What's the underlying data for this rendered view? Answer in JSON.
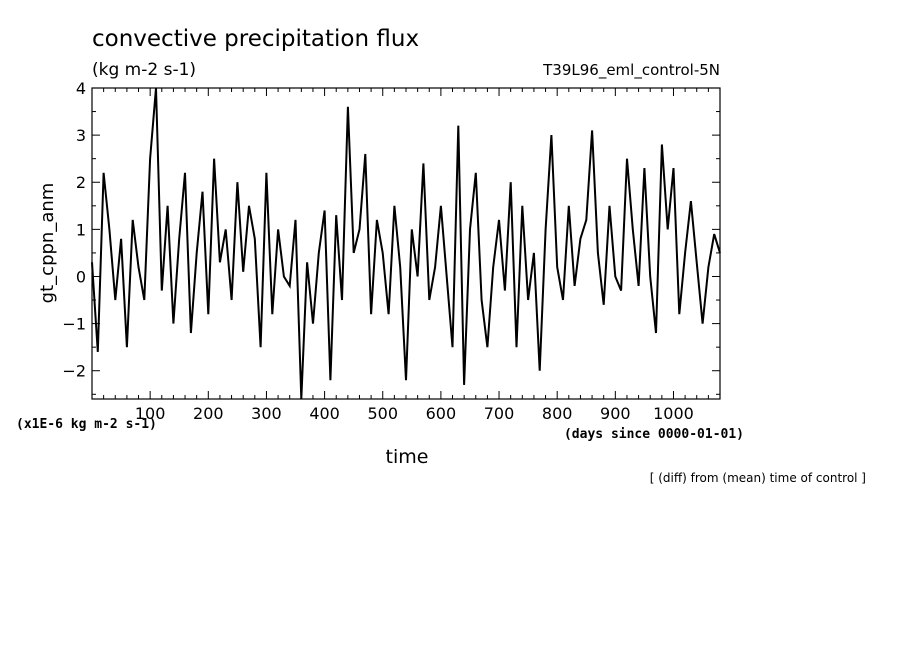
{
  "chart_data": {
    "type": "line",
    "title": "convective precipitation flux",
    "subtitle_left": "(kg m-2 s-1)",
    "subtitle_right": "T39L96_eml_control-5N",
    "ylabel": "gt_cppn_anm",
    "xlabel": "time",
    "x_unit_note": "(days since 0000-01-01)",
    "y_unit_note": "(x1E-6 kg m-2 s-1)",
    "footnote": "[ (diff) from (mean) time of control ]",
    "xlim": [
      0,
      1080
    ],
    "ylim": [
      -2.6,
      4.0
    ],
    "x_ticks_major": [
      100,
      200,
      300,
      400,
      500,
      600,
      700,
      800,
      900,
      1000
    ],
    "y_ticks_major": [
      -2,
      -1,
      0,
      1,
      2,
      3,
      4
    ],
    "y_tick_labels": [
      "−2",
      "−1",
      "0",
      "1",
      "2",
      "3",
      "4"
    ],
    "grid": false,
    "series": [
      {
        "x": [
          0,
          10,
          20,
          30,
          40,
          50,
          60,
          70,
          80,
          90,
          100,
          110,
          120,
          130,
          140,
          150,
          160,
          170,
          180,
          190,
          200,
          210,
          220,
          230,
          240,
          250,
          260,
          270,
          280,
          290,
          300,
          310,
          320,
          330,
          340,
          350,
          360,
          370,
          380,
          390,
          400,
          410,
          420,
          430,
          440,
          450,
          460,
          470,
          480,
          490,
          500,
          510,
          520,
          530,
          540,
          550,
          560,
          570,
          580,
          590,
          600,
          610,
          620,
          630,
          640,
          650,
          660,
          670,
          680,
          690,
          700,
          710,
          720,
          730,
          740,
          750,
          760,
          770,
          780,
          790,
          800,
          810,
          820,
          830,
          840,
          850,
          860,
          870,
          880,
          890,
          900,
          910,
          920,
          930,
          940,
          950,
          960,
          970,
          980,
          990,
          1000,
          1010,
          1020,
          1030,
          1040,
          1050,
          1060,
          1070,
          1080
        ],
        "y": [
          0.3,
          -1.6,
          2.2,
          1.0,
          -0.5,
          0.8,
          -1.5,
          1.2,
          0.2,
          -0.5,
          2.5,
          4.0,
          -0.3,
          1.5,
          -1.0,
          0.8,
          2.2,
          -1.2,
          0.5,
          1.8,
          -0.8,
          2.5,
          0.3,
          1.0,
          -0.5,
          2.0,
          0.1,
          1.5,
          0.8,
          -1.5,
          2.2,
          -0.8,
          1.0,
          0.0,
          -0.2,
          1.2,
          -2.6,
          0.3,
          -1.0,
          0.5,
          1.4,
          -2.2,
          1.3,
          -0.5,
          3.6,
          0.5,
          1.0,
          2.6,
          -0.8,
          1.2,
          0.5,
          -0.8,
          1.5,
          0.2,
          -2.2,
          1.0,
          0.0,
          2.4,
          -0.5,
          0.2,
          1.5,
          0.0,
          -1.5,
          3.2,
          -2.3,
          1.0,
          2.2,
          -0.5,
          -1.5,
          0.2,
          1.2,
          -0.3,
          2.0,
          -1.5,
          1.5,
          -0.5,
          0.5,
          -2.0,
          1.0,
          3.0,
          0.2,
          -0.5,
          1.5,
          -0.2,
          0.8,
          1.2,
          3.1,
          0.5,
          -0.6,
          1.5,
          0.0,
          -0.3,
          2.5,
          1.0,
          -0.2,
          2.3,
          0.0,
          -1.2,
          2.8,
          1.0,
          2.3,
          -0.8,
          0.5,
          1.6,
          0.3,
          -1.0,
          0.2,
          0.9,
          0.5
        ]
      }
    ]
  }
}
